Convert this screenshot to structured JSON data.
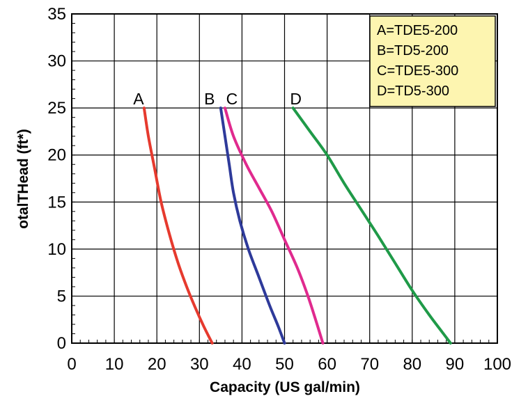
{
  "chart_data": {
    "type": "line",
    "title": "",
    "xlabel": "Capacity (US gal/min)",
    "ylabel": "otalTHead (ft*)",
    "xlim": [
      0,
      100
    ],
    "ylim": [
      0,
      35
    ],
    "xticks": [
      "0",
      "10",
      "20",
      "30",
      "40",
      "50",
      "60",
      "70",
      "80",
      "90",
      "100"
    ],
    "yticks": [
      "0",
      "5",
      "10",
      "15",
      "20",
      "25",
      "30",
      "35"
    ],
    "grid": true,
    "legend_position": "top-right",
    "legend": [
      "A=TDE5-200",
      "B=TD5-200",
      "C=TDE5-300",
      "D=TD5-300"
    ],
    "series": [
      {
        "name": "A",
        "color": "#e63a2e",
        "x": [
          17,
          18,
          19.5,
          21,
          23,
          25,
          27,
          29,
          31,
          33
        ],
        "y": [
          25,
          22,
          18.5,
          15,
          11.5,
          8.5,
          6,
          3.8,
          1.8,
          0
        ]
      },
      {
        "name": "B",
        "color": "#2e3a9a",
        "x": [
          35,
          36,
          37,
          38,
          39.5,
          41.5,
          44,
          46.5,
          48.5,
          50
        ],
        "y": [
          25,
          22,
          19,
          16,
          13,
          10,
          7,
          4,
          1.8,
          0
        ]
      },
      {
        "name": "C",
        "color": "#e02a8e",
        "x": [
          36,
          38,
          41,
          44,
          47,
          50,
          53,
          55.5,
          57.5,
          59
        ],
        "y": [
          25,
          22,
          19,
          16.5,
          14,
          11,
          8,
          5,
          2.2,
          0
        ]
      },
      {
        "name": "D",
        "color": "#1f9a48",
        "x": [
          52,
          56,
          60,
          64,
          68,
          72,
          76,
          80,
          84,
          87,
          89
        ],
        "y": [
          25,
          22.5,
          20,
          17,
          14.2,
          11.4,
          8.5,
          5.6,
          3,
          1.2,
          0
        ]
      }
    ]
  }
}
